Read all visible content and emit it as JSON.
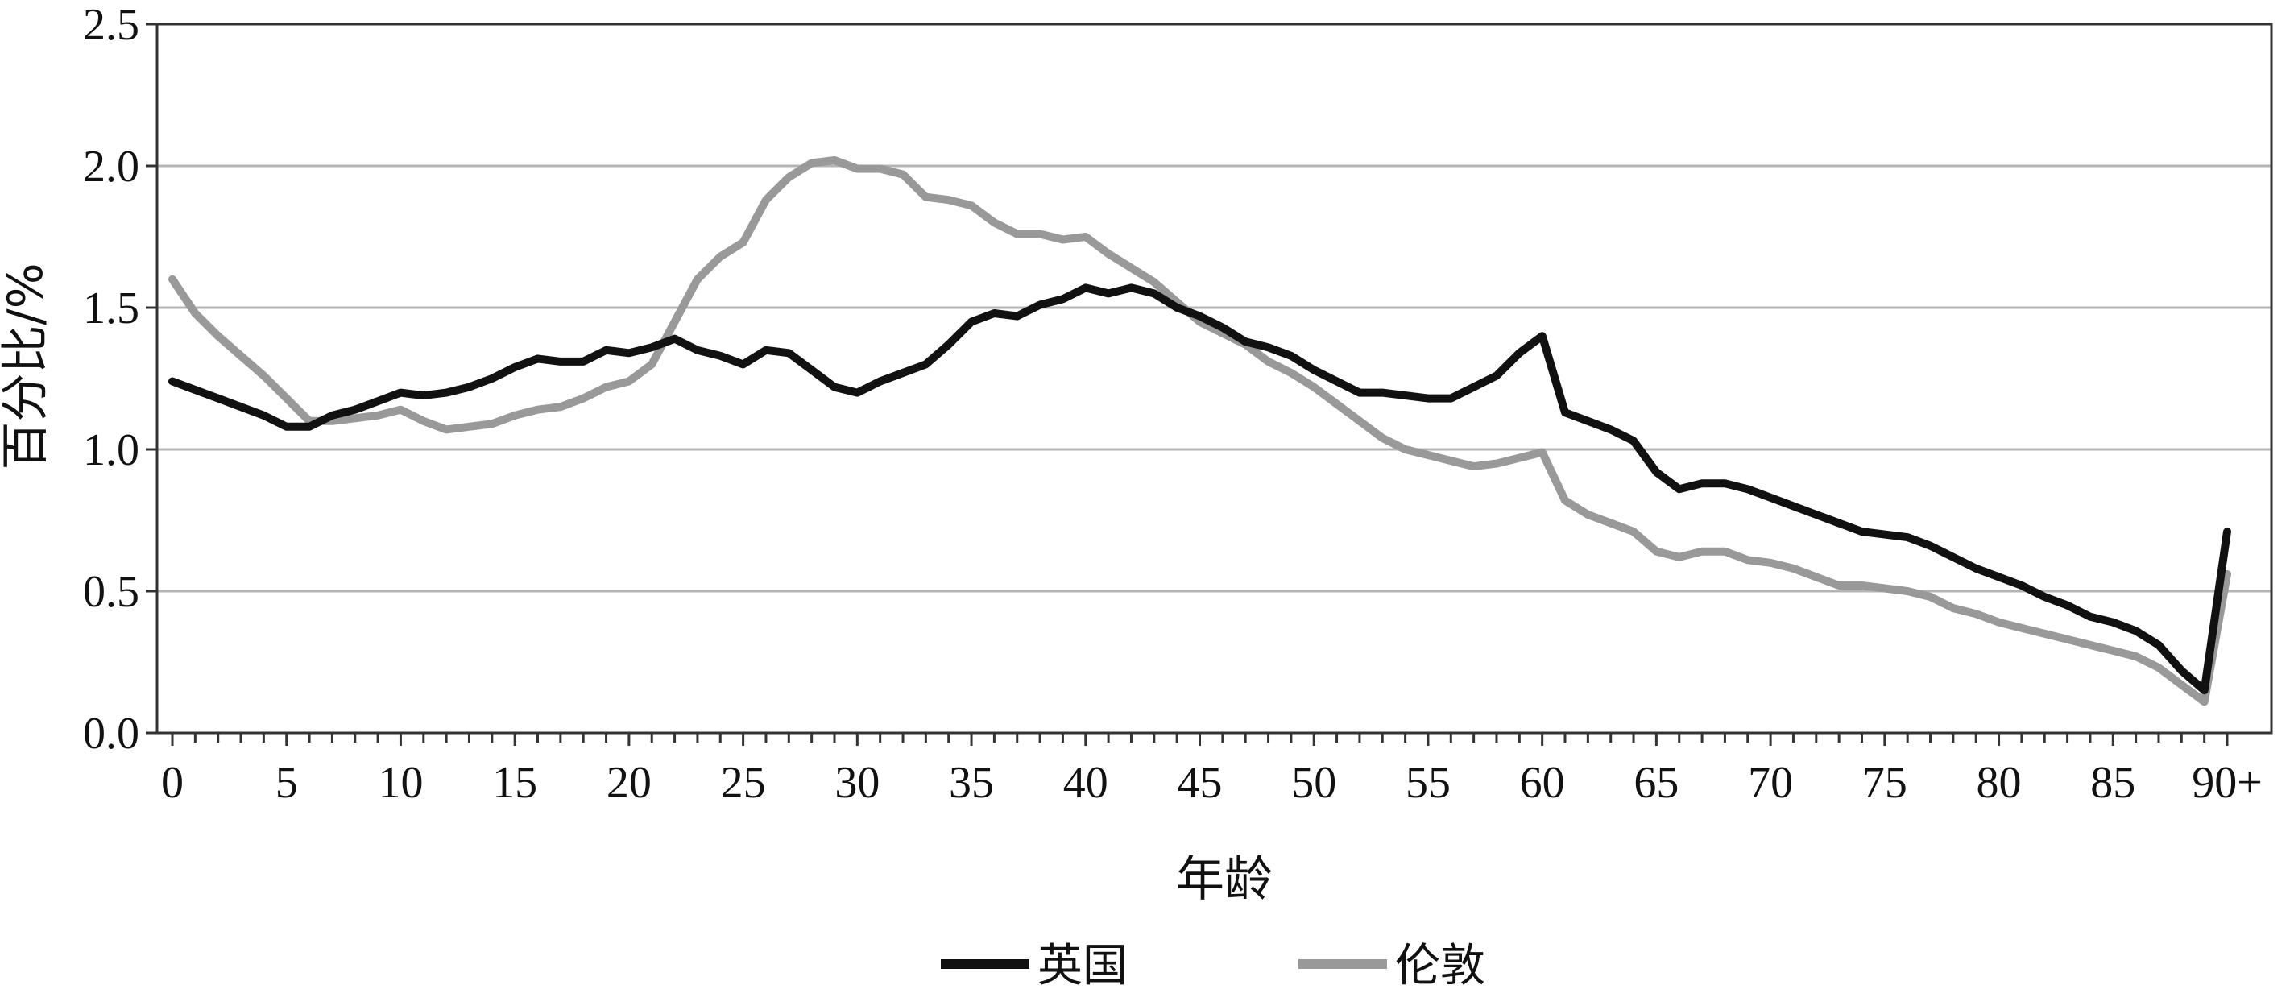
{
  "chart_data": {
    "type": "line",
    "title": "",
    "xlabel": "年龄",
    "ylabel": "百分比/%",
    "ylim": [
      0,
      2.5
    ],
    "yticks": [
      "0.0",
      "0.5",
      "1.0",
      "1.5",
      "2.0",
      "2.5"
    ],
    "xtick_labels": [
      "0",
      "5",
      "10",
      "15",
      "20",
      "25",
      "30",
      "35",
      "40",
      "45",
      "50",
      "55",
      "60",
      "65",
      "70",
      "75",
      "80",
      "85",
      "90+"
    ],
    "grid": "horizontal",
    "legend_position": "bottom",
    "x": [
      0,
      1,
      2,
      3,
      4,
      5,
      6,
      7,
      8,
      9,
      10,
      11,
      12,
      13,
      14,
      15,
      16,
      17,
      18,
      19,
      20,
      21,
      22,
      23,
      24,
      25,
      26,
      27,
      28,
      29,
      30,
      31,
      32,
      33,
      34,
      35,
      36,
      37,
      38,
      39,
      40,
      41,
      42,
      43,
      44,
      45,
      46,
      47,
      48,
      49,
      50,
      51,
      52,
      53,
      54,
      55,
      56,
      57,
      58,
      59,
      60,
      61,
      62,
      63,
      64,
      65,
      66,
      67,
      68,
      69,
      70,
      71,
      72,
      73,
      74,
      75,
      76,
      77,
      78,
      79,
      80,
      81,
      82,
      83,
      84,
      85,
      86,
      87,
      88,
      89,
      90
    ],
    "series": [
      {
        "name": "英国",
        "color": "#111111",
        "values": [
          1.24,
          1.21,
          1.18,
          1.15,
          1.12,
          1.08,
          1.08,
          1.12,
          1.14,
          1.17,
          1.2,
          1.19,
          1.2,
          1.22,
          1.25,
          1.29,
          1.32,
          1.31,
          1.31,
          1.35,
          1.34,
          1.36,
          1.39,
          1.35,
          1.33,
          1.3,
          1.35,
          1.34,
          1.28,
          1.22,
          1.2,
          1.24,
          1.27,
          1.3,
          1.37,
          1.45,
          1.48,
          1.47,
          1.51,
          1.53,
          1.57,
          1.55,
          1.57,
          1.55,
          1.5,
          1.47,
          1.43,
          1.38,
          1.36,
          1.33,
          1.28,
          1.24,
          1.2,
          1.2,
          1.19,
          1.18,
          1.18,
          1.22,
          1.26,
          1.34,
          1.4,
          1.13,
          1.1,
          1.07,
          1.03,
          0.92,
          0.86,
          0.88,
          0.88,
          0.86,
          0.83,
          0.8,
          0.77,
          0.74,
          0.71,
          0.7,
          0.69,
          0.66,
          0.62,
          0.58,
          0.55,
          0.52,
          0.48,
          0.45,
          0.41,
          0.39,
          0.36,
          0.31,
          0.22,
          0.15,
          0.71
        ]
      },
      {
        "name": "伦敦",
        "color": "#999999",
        "values": [
          1.6,
          1.48,
          1.4,
          1.33,
          1.26,
          1.18,
          1.1,
          1.1,
          1.11,
          1.12,
          1.14,
          1.1,
          1.07,
          1.08,
          1.09,
          1.12,
          1.14,
          1.15,
          1.18,
          1.22,
          1.24,
          1.3,
          1.45,
          1.6,
          1.68,
          1.73,
          1.88,
          1.96,
          2.01,
          2.02,
          1.99,
          1.99,
          1.97,
          1.89,
          1.88,
          1.86,
          1.8,
          1.76,
          1.76,
          1.74,
          1.75,
          1.69,
          1.64,
          1.59,
          1.52,
          1.45,
          1.41,
          1.37,
          1.31,
          1.27,
          1.22,
          1.16,
          1.1,
          1.04,
          1.0,
          0.98,
          0.96,
          0.94,
          0.95,
          0.97,
          0.99,
          0.82,
          0.77,
          0.74,
          0.71,
          0.64,
          0.62,
          0.64,
          0.64,
          0.61,
          0.6,
          0.58,
          0.55,
          0.52,
          0.52,
          0.51,
          0.5,
          0.48,
          0.44,
          0.42,
          0.39,
          0.37,
          0.35,
          0.33,
          0.31,
          0.29,
          0.27,
          0.23,
          0.17,
          0.11,
          0.56
        ]
      }
    ]
  }
}
